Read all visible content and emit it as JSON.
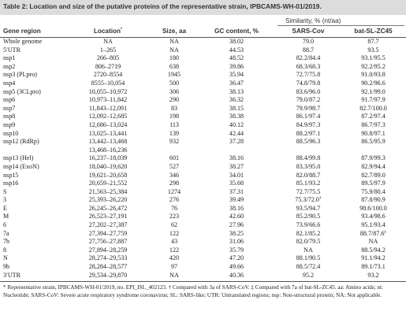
{
  "caption": "Table 2: Location and size of the putative proteins of the representative strain, IPBCAMS-WH-01/2019.",
  "similarity_header": "Similarity, % (nt/aa)",
  "columns": {
    "gene_region": "Gene region",
    "location": "Location",
    "location_mark": "*",
    "size": "Size, aa",
    "gc": "GC content, %",
    "sars": "SARS-Cov",
    "bat": "bat-SL-ZC45"
  },
  "rows": [
    {
      "gene": "Whole genome",
      "loc": "NA",
      "size": "NA",
      "gc": "38.02",
      "sars": "79.0",
      "bat": "87.7"
    },
    {
      "gene": "5′UTR",
      "loc": "1–265",
      "size": "NA",
      "gc": "44.53",
      "sars": "88.7",
      "bat": "93.5"
    },
    {
      "gene": "nsp1",
      "loc": "266–805",
      "size": "180",
      "gc": "48.52",
      "sars": "82.2/84.4",
      "bat": "93.1/95.5"
    },
    {
      "gene": "nsp2",
      "loc": "806–2719",
      "size": "638",
      "gc": "39.86",
      "sars": "68.3/68.3",
      "bat": "92.2/95.2"
    },
    {
      "gene": "nsp3 (PLpro)",
      "loc": "2720–8554",
      "size": "1945",
      "gc": "35.94",
      "sars": "72.7/75.8",
      "bat": "91.0/93.8"
    },
    {
      "gene": "nsp4",
      "loc": "8555–10,054",
      "size": "500",
      "gc": "36.47",
      "sars": "74.8/79.8",
      "bat": "90.2/96.6"
    },
    {
      "gene": "nsp5 (3CLpro)",
      "loc": "10,055–10,972",
      "size": "306",
      "gc": "38.13",
      "sars": "83.6/96.0",
      "bat": "92.1/99.0"
    },
    {
      "gene": "nsp6",
      "loc": "10,973–11,842",
      "size": "290",
      "gc": "36.32",
      "sars": "79.0/87.2",
      "bat": "91.7/97.9"
    },
    {
      "gene": "nsp7",
      "loc": "11,843–12,091",
      "size": "83",
      "gc": "38.15",
      "sars": "79.9/98.7",
      "bat": "82.7/100.0"
    },
    {
      "gene": "nsp8",
      "loc": "12,092–12,685",
      "size": "198",
      "gc": "38.38",
      "sars": "86.1/97.4",
      "bat": "87.2/97.4"
    },
    {
      "gene": "nsp9",
      "loc": "12,686–13,024",
      "size": "113",
      "gc": "40.12",
      "sars": "84.9/97.3",
      "bat": "86.7/97.3"
    },
    {
      "gene": "nsp10",
      "loc": "13,025–13,441",
      "size": "139",
      "gc": "42.44",
      "sars": "88.2/97.1",
      "bat": "90.8/97.1"
    },
    {
      "gene": "nsp12 (RdRp)",
      "loc": "13,442–13,468",
      "loc2": "13,468–16,236",
      "size": "932",
      "gc": "37.28",
      "sars": "88.5/96.3",
      "bat": "86.5/95.9"
    },
    {
      "gene": "nsp13 (Hel)",
      "loc": "16,237–18,039",
      "size": "601",
      "gc": "38.16",
      "sars": "88.4/99.8",
      "bat": "87.9/99.3"
    },
    {
      "gene": "nsp14 (ExoN)",
      "loc": "18,040–19,620",
      "size": "527",
      "gc": "38.27",
      "sars": "83.3/95.0",
      "bat": "82.9/94.4"
    },
    {
      "gene": "nsp15",
      "loc": "19,621–20,658",
      "size": "346",
      "gc": "34.01",
      "sars": "82.0/88.7",
      "bat": "82.7/89.0"
    },
    {
      "gene": "nsp16",
      "loc": "20,659–21,552",
      "size": "298",
      "gc": "35.68",
      "sars": "85.1/93.2",
      "bat": "89.5/97.9"
    },
    {
      "gene": "S",
      "loc": "21,563–25,384",
      "size": "1274",
      "gc": "37.31",
      "sars": "72.7/75.5",
      "bat": "75.9/80.4"
    },
    {
      "gene": "3",
      "loc": "25,393–26,220",
      "size": "276",
      "gc": "39.49",
      "sars": "75.3/72.0",
      "sars_mark": "†",
      "bat": "87.8/90.9"
    },
    {
      "gene": "E",
      "loc": "26,245–26,472",
      "size": "76",
      "gc": "38.16",
      "sars": "93.5/94.7",
      "bat": "98.6/100.0"
    },
    {
      "gene": "M",
      "loc": "26,523–27,191",
      "size": "223",
      "gc": "42.60",
      "sars": "85.2/90.5",
      "bat": "93.4/98.6"
    },
    {
      "gene": "6",
      "loc": "27,202–27,387",
      "size": "62",
      "gc": "27.96",
      "sars": "73.9/66.6",
      "bat": "95.1/93.4"
    },
    {
      "gene": "7a",
      "loc": "27,394–27,759",
      "size": "122",
      "gc": "38.25",
      "sars": "82.1/85.2",
      "bat": "88.7/87.6",
      "bat_mark": "‡"
    },
    {
      "gene": "7b",
      "loc": "27,756–27,887",
      "size": "43",
      "gc": "31.06",
      "sars": "82.0/79.5",
      "bat": "NA"
    },
    {
      "gene": "8",
      "loc": "27,894–28,259",
      "size": "122",
      "gc": "35.79",
      "sars": "NA",
      "bat": "88.5/94.2"
    },
    {
      "gene": "N",
      "loc": "28,274–29,533",
      "size": "420",
      "gc": "47.20",
      "sars": "88.1/90.5",
      "bat": "91.1/94.2"
    },
    {
      "gene": "9b",
      "loc": "28,284–28,577",
      "size": "97",
      "gc": "49.66",
      "sars": "88.5/72.4",
      "bat": "89.1/73.1"
    },
    {
      "gene": "3′UTR",
      "loc": "29,534–29,870",
      "size": "NA",
      "gc": "40.36",
      "sars": "95.2",
      "bat": "93.2"
    }
  ],
  "footnote": "* Representative strain, IPBCAMS-WH-01/2019, no. EPI_ISL_402123. † Compared with 3a of SARS-CoV. ‡ Compared with 7a of bat-SL-ZC45. aa: Amino acids; nt: Nucleotide; SARS-CoV: Severe acute respiratory syndrome coronavirus; SL: SARS-like; UTR: Untranslated regions; nsp: Non-structural protein; NA: Not applicable."
}
